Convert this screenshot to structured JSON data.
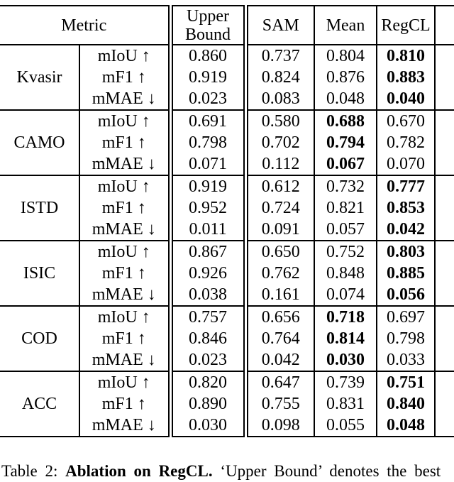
{
  "table": {
    "header": {
      "metric": "Metric",
      "columns": [
        "Upper Bound",
        "SAM",
        "Mean",
        "RegCL"
      ]
    },
    "groups": [
      {
        "dataset": "Kvasir",
        "rows": [
          {
            "metric": "mIoU ↑",
            "values": [
              "0.860",
              "0.737",
              "0.804",
              "0.810"
            ],
            "bold_index": 3
          },
          {
            "metric": "mF1 ↑",
            "values": [
              "0.919",
              "0.824",
              "0.876",
              "0.883"
            ],
            "bold_index": 3
          },
          {
            "metric": "mMAE ↓",
            "values": [
              "0.023",
              "0.083",
              "0.048",
              "0.040"
            ],
            "bold_index": 3
          }
        ]
      },
      {
        "dataset": "CAMO",
        "rows": [
          {
            "metric": "mIoU ↑",
            "values": [
              "0.691",
              "0.580",
              "0.688",
              "0.670"
            ],
            "bold_index": 2
          },
          {
            "metric": "mF1 ↑",
            "values": [
              "0.798",
              "0.702",
              "0.794",
              "0.782"
            ],
            "bold_index": 2
          },
          {
            "metric": "mMAE ↓",
            "values": [
              "0.071",
              "0.112",
              "0.067",
              "0.070"
            ],
            "bold_index": 2
          }
        ]
      },
      {
        "dataset": "ISTD",
        "rows": [
          {
            "metric": "mIoU ↑",
            "values": [
              "0.919",
              "0.612",
              "0.732",
              "0.777"
            ],
            "bold_index": 3
          },
          {
            "metric": "mF1 ↑",
            "values": [
              "0.952",
              "0.724",
              "0.821",
              "0.853"
            ],
            "bold_index": 3
          },
          {
            "metric": "mMAE ↓",
            "values": [
              "0.011",
              "0.091",
              "0.057",
              "0.042"
            ],
            "bold_index": 3
          }
        ]
      },
      {
        "dataset": "ISIC",
        "rows": [
          {
            "metric": "mIoU ↑",
            "values": [
              "0.867",
              "0.650",
              "0.752",
              "0.803"
            ],
            "bold_index": 3
          },
          {
            "metric": "mF1 ↑",
            "values": [
              "0.926",
              "0.762",
              "0.848",
              "0.885"
            ],
            "bold_index": 3
          },
          {
            "metric": "mMAE ↓",
            "values": [
              "0.038",
              "0.161",
              "0.074",
              "0.056"
            ],
            "bold_index": 3
          }
        ]
      },
      {
        "dataset": "COD",
        "rows": [
          {
            "metric": "mIoU ↑",
            "values": [
              "0.757",
              "0.656",
              "0.718",
              "0.697"
            ],
            "bold_index": 2
          },
          {
            "metric": "mF1 ↑",
            "values": [
              "0.846",
              "0.764",
              "0.814",
              "0.798"
            ],
            "bold_index": 2
          },
          {
            "metric": "mMAE ↓",
            "values": [
              "0.023",
              "0.042",
              "0.030",
              "0.033"
            ],
            "bold_index": 2
          }
        ]
      },
      {
        "dataset": "ACC",
        "rows": [
          {
            "metric": "mIoU ↑",
            "values": [
              "0.820",
              "0.647",
              "0.739",
              "0.751"
            ],
            "bold_index": 3
          },
          {
            "metric": "mF1 ↑",
            "values": [
              "0.890",
              "0.755",
              "0.831",
              "0.840"
            ],
            "bold_index": 3
          },
          {
            "metric": "mMAE ↓",
            "values": [
              "0.030",
              "0.098",
              "0.055",
              "0.048"
            ],
            "bold_index": 3
          }
        ]
      }
    ]
  },
  "caption": {
    "prefix": "Table 2:",
    "bold": "Ablation on RegCL.",
    "rest": "‘Upper Bound’ denotes the best"
  }
}
